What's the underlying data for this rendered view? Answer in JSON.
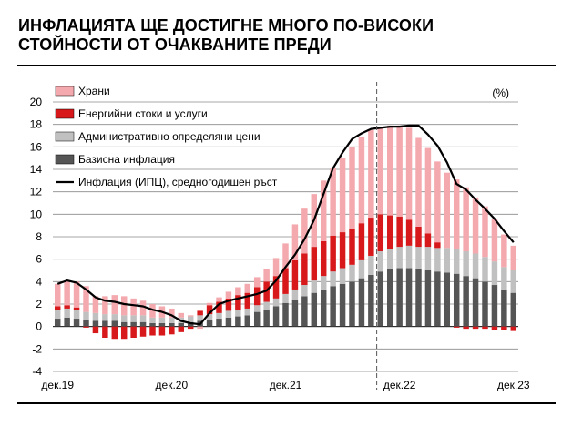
{
  "title": {
    "line1": "ИНФЛАЦИЯТА ЩЕ ДОСТИГНЕ МНОГО ПО-ВИСОКИ",
    "line2": "СТОЙНОСТИ  ОТ ОЧАКВАНИТЕ ПРЕДИ"
  },
  "chart_data": {
    "type": "bar",
    "stacked": true,
    "unit": "(%)",
    "ylim": [
      -4,
      20
    ],
    "yticks": [
      -4,
      -2,
      0,
      2,
      4,
      6,
      8,
      10,
      12,
      14,
      16,
      18,
      20
    ],
    "x_tick_labels": [
      {
        "index": 0,
        "label": "дек.19"
      },
      {
        "index": 12,
        "label": "дек.20"
      },
      {
        "index": 24,
        "label": "дек.21"
      },
      {
        "index": 36,
        "label": "дек.22"
      },
      {
        "index": 48,
        "label": "дек.23"
      }
    ],
    "forecast_start_index": 34,
    "categories": [
      "Dec-19",
      "Jan-20",
      "Feb-20",
      "Mar-20",
      "Apr-20",
      "May-20",
      "Jun-20",
      "Jul-20",
      "Aug-20",
      "Sep-20",
      "Oct-20",
      "Nov-20",
      "Dec-20",
      "Jan-21",
      "Feb-21",
      "Mar-21",
      "Apr-21",
      "May-21",
      "Jun-21",
      "Jul-21",
      "Aug-21",
      "Sep-21",
      "Oct-21",
      "Nov-21",
      "Dec-21",
      "Jan-22",
      "Feb-22",
      "Mar-22",
      "Apr-22",
      "May-22",
      "Jun-22",
      "Jul-22",
      "Aug-22",
      "Sep-22",
      "Oct-22",
      "Nov-22",
      "Dec-22",
      "Jan-23",
      "Feb-23",
      "Mar-23",
      "Apr-23",
      "May-23",
      "Jun-23",
      "Jul-23",
      "Aug-23",
      "Sep-23",
      "Oct-23",
      "Nov-23",
      "Dec-23"
    ],
    "legend": {
      "position": "top-left",
      "entries": [
        {
          "label": "Храни",
          "kind": "box",
          "color": "#f4a9ae"
        },
        {
          "label": "Енергийни стоки и услуги",
          "kind": "box",
          "color": "#d7191c"
        },
        {
          "label": "Административно определяни цени",
          "kind": "box",
          "color": "#c0c0c0"
        },
        {
          "label": "Базисна инфлация",
          "kind": "box",
          "color": "#555555"
        },
        {
          "label": "Инфлация (ИПЦ), средногодишен ръст",
          "kind": "line",
          "color": "#000000"
        }
      ]
    },
    "series": [
      {
        "name": "Базисна инфлация",
        "color": "#555555",
        "values": [
          0.7,
          0.8,
          0.7,
          0.6,
          0.5,
          0.5,
          0.5,
          0.4,
          0.4,
          0.4,
          0.3,
          0.3,
          0.3,
          0.3,
          0.4,
          0.5,
          0.6,
          0.7,
          0.8,
          0.9,
          1.0,
          1.3,
          1.5,
          1.8,
          2.1,
          2.4,
          2.7,
          3.0,
          3.3,
          3.6,
          3.8,
          4.0,
          4.3,
          4.6,
          4.9,
          5.1,
          5.2,
          5.2,
          5.1,
          5.0,
          4.9,
          4.8,
          4.7,
          4.5,
          4.3,
          4.0,
          3.7,
          3.3,
          3.0
        ]
      },
      {
        "name": "Административно определяни цени",
        "color": "#c0c0c0",
        "values": [
          0.8,
          0.8,
          0.8,
          0.7,
          0.7,
          0.6,
          0.6,
          0.6,
          0.6,
          0.6,
          0.5,
          0.5,
          0.5,
          0.5,
          0.5,
          0.5,
          0.5,
          0.5,
          0.6,
          0.6,
          0.6,
          0.6,
          0.7,
          0.7,
          0.8,
          0.9,
          1.0,
          1.1,
          1.2,
          1.3,
          1.4,
          1.5,
          1.6,
          1.7,
          1.8,
          1.8,
          1.9,
          2.0,
          2.0,
          2.1,
          2.1,
          2.2,
          2.2,
          2.2,
          2.2,
          2.2,
          2.1,
          2.0,
          2.0
        ]
      },
      {
        "name": "Енергийни стоки и услуги",
        "color": "#d7191c",
        "values": [
          0.3,
          0.3,
          0.2,
          -0.1,
          -0.6,
          -1.0,
          -1.1,
          -1.1,
          -1.0,
          -0.9,
          -0.8,
          -0.8,
          -0.7,
          -0.5,
          -0.2,
          0.4,
          0.8,
          1.0,
          1.1,
          1.3,
          1.4,
          1.6,
          1.8,
          2.0,
          2.3,
          2.6,
          2.8,
          3.0,
          3.1,
          3.2,
          3.2,
          3.2,
          3.3,
          3.4,
          3.3,
          3.0,
          2.7,
          2.3,
          1.8,
          1.2,
          0.5,
          0.0,
          -0.1,
          -0.2,
          -0.2,
          -0.2,
          -0.3,
          -0.3,
          -0.4
        ]
      },
      {
        "name": "Храни",
        "color": "#f4a9ae",
        "values": [
          2.0,
          2.2,
          2.3,
          2.3,
          1.5,
          1.6,
          1.7,
          1.7,
          1.5,
          1.3,
          1.2,
          1.0,
          0.8,
          0.4,
          0.1,
          -0.2,
          0.2,
          0.4,
          0.6,
          0.7,
          0.8,
          0.9,
          1.1,
          1.6,
          2.2,
          3.2,
          4.0,
          4.7,
          5.4,
          6.0,
          6.6,
          7.3,
          7.7,
          7.8,
          7.8,
          8.0,
          8.1,
          8.2,
          7.9,
          7.6,
          7.2,
          6.7,
          6.2,
          5.7,
          5.0,
          4.5,
          3.8,
          2.9,
          2.2
        ]
      }
    ],
    "line": {
      "name": "Инфлация (ИПЦ), средногодишен ръст",
      "color": "#000000",
      "values": [
        3.8,
        4.1,
        3.9,
        3.3,
        2.6,
        2.3,
        2.2,
        2.0,
        1.9,
        1.8,
        1.5,
        1.3,
        1.0,
        0.5,
        0.3,
        0.2,
        1.2,
        2.0,
        2.3,
        2.5,
        2.7,
        2.9,
        3.2,
        4.1,
        5.3,
        6.4,
        7.8,
        9.5,
        11.8,
        14.1,
        15.5,
        16.7,
        17.2,
        17.6,
        17.7,
        17.8,
        17.8,
        17.9,
        17.9,
        17.1,
        16.1,
        14.6,
        12.7,
        12.2,
        11.3,
        10.5,
        9.6,
        8.5,
        7.5
      ]
    }
  }
}
